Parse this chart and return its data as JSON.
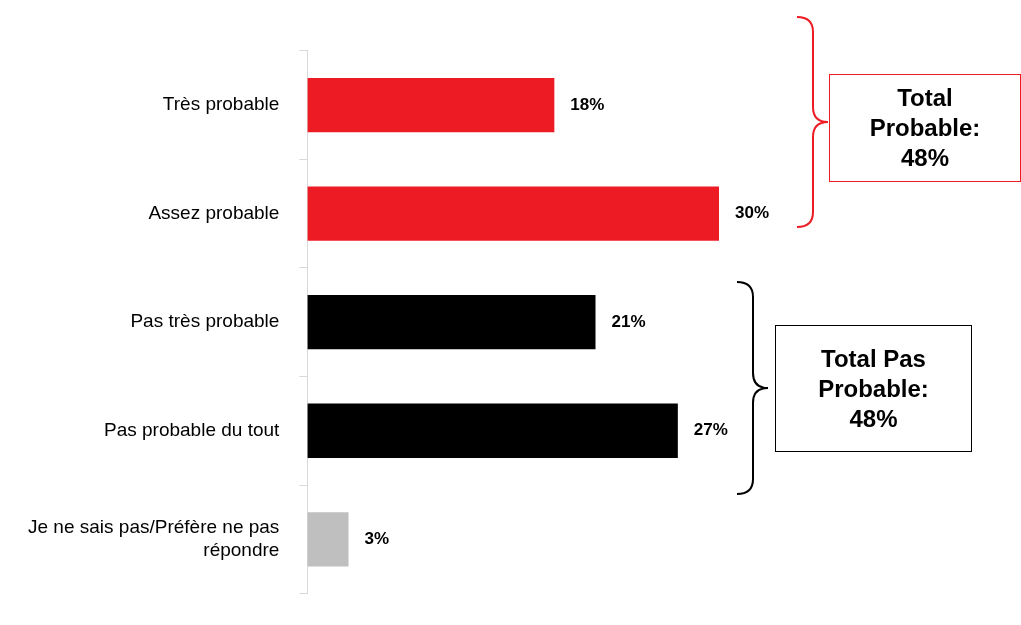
{
  "chart_data": {
    "type": "bar",
    "orientation": "horizontal",
    "data_labels": true,
    "legend": false,
    "grid": false,
    "categories": [
      "Très probable",
      "Assez probable",
      "Pas très probable",
      "Pas probable du tout",
      "Je ne sais pas/Préfère ne pas répondre"
    ],
    "values": [
      18,
      30,
      21,
      27,
      3
    ],
    "value_labels": [
      "18%",
      "30%",
      "21%",
      "27%",
      "3%"
    ],
    "colors": [
      "#ed1c24",
      "#ed1c24",
      "#000000",
      "#000000",
      "#bfbfbf"
    ],
    "annotations": [
      "Total Probable: 48%",
      "Total Pas Probable: 48%"
    ]
  }
}
